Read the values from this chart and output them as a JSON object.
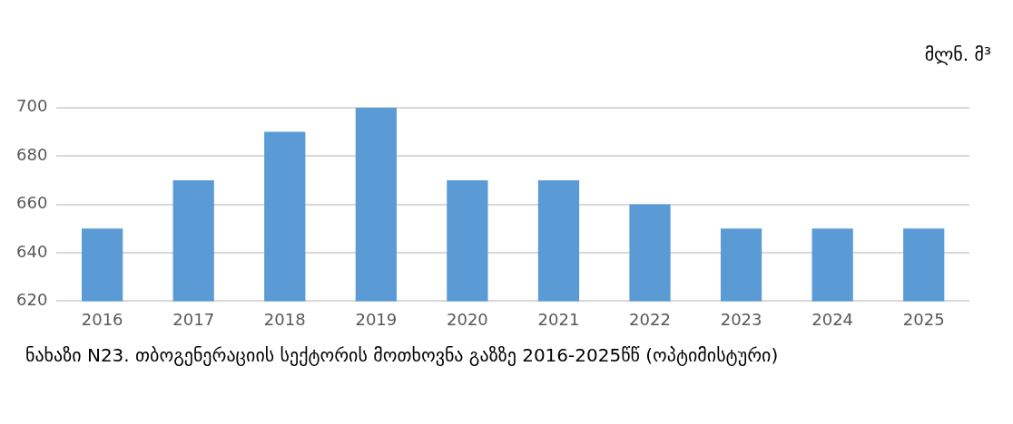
{
  "chart_data": {
    "type": "bar",
    "ylabel": "მლნ. მ³",
    "categories": [
      "2016",
      "2017",
      "2018",
      "2019",
      "2020",
      "2021",
      "2022",
      "2023",
      "2024",
      "2025"
    ],
    "values": [
      650,
      670,
      690,
      700,
      670,
      670,
      660,
      650,
      650,
      650
    ],
    "color": "#5b9bd5",
    "ylim": [
      620,
      700
    ],
    "yticks": [
      620,
      640,
      660,
      680,
      700
    ],
    "grid": "y",
    "annotations": [
      "ნახაზი N23. თბოგენერაციის სექტორის მოთხოვნა გაზზე 2016-2025წწ (ოპტიმისტური)"
    ]
  }
}
